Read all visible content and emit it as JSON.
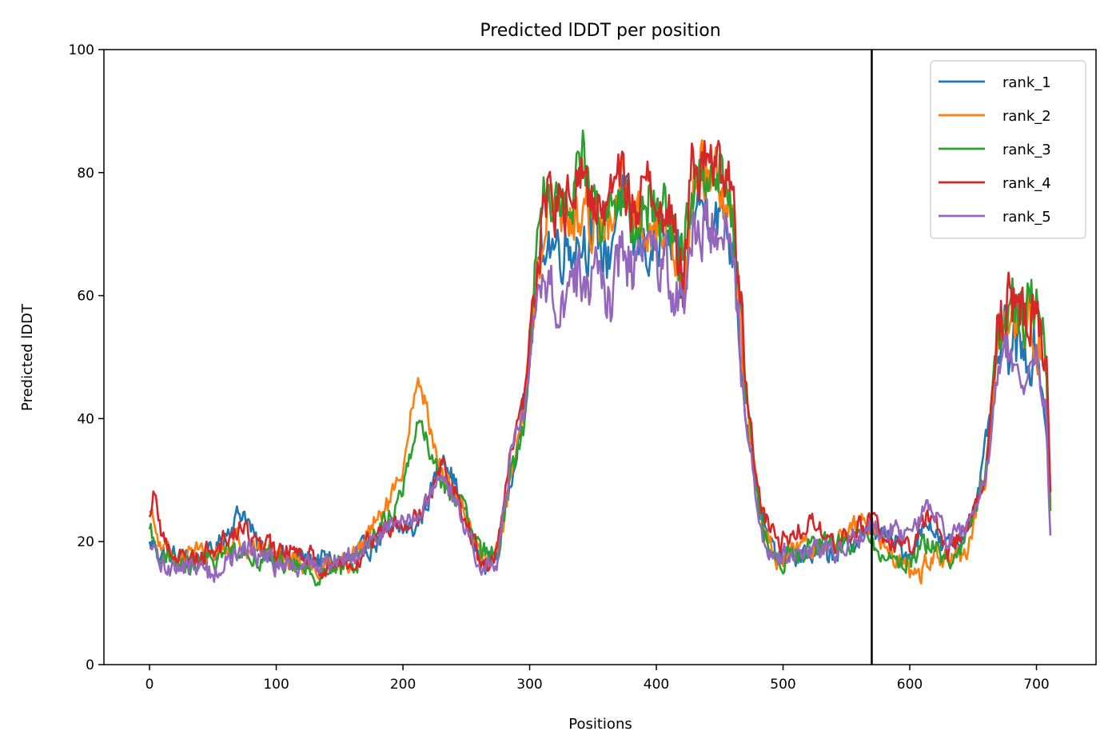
{
  "chart_data": {
    "type": "line",
    "title": "Predicted lDDT per position",
    "xlabel": "Positions",
    "ylabel": "Predicted lDDT",
    "xlim": [
      -36,
      747
    ],
    "ylim": [
      0,
      100
    ],
    "xticks": [
      0,
      100,
      200,
      300,
      400,
      500,
      600,
      700
    ],
    "yticks": [
      0,
      20,
      40,
      60,
      80,
      100
    ],
    "grid": false,
    "legend": "upper-right",
    "vline": 570,
    "n_positions": 712,
    "series": [
      {
        "name": "rank_1",
        "color": "#1f77b4",
        "anchors": [
          [
            0,
            20
          ],
          [
            10,
            18
          ],
          [
            30,
            17
          ],
          [
            50,
            18
          ],
          [
            68,
            24
          ],
          [
            75,
            25
          ],
          [
            85,
            19
          ],
          [
            100,
            18
          ],
          [
            130,
            17
          ],
          [
            160,
            17
          ],
          [
            185,
            21
          ],
          [
            200,
            22
          ],
          [
            210,
            22
          ],
          [
            222,
            28
          ],
          [
            232,
            35
          ],
          [
            245,
            27
          ],
          [
            262,
            16
          ],
          [
            275,
            18
          ],
          [
            285,
            30
          ],
          [
            295,
            42
          ],
          [
            305,
            60
          ],
          [
            312,
            70
          ],
          [
            320,
            68
          ],
          [
            335,
            69
          ],
          [
            350,
            70
          ],
          [
            362,
            66
          ],
          [
            372,
            78
          ],
          [
            382,
            68
          ],
          [
            395,
            68
          ],
          [
            410,
            68
          ],
          [
            422,
            60
          ],
          [
            428,
            74
          ],
          [
            440,
            75
          ],
          [
            455,
            72
          ],
          [
            462,
            66
          ],
          [
            470,
            42
          ],
          [
            478,
            30
          ],
          [
            485,
            22
          ],
          [
            495,
            17
          ],
          [
            515,
            18
          ],
          [
            540,
            18
          ],
          [
            570,
            22
          ],
          [
            585,
            20
          ],
          [
            600,
            18
          ],
          [
            615,
            24
          ],
          [
            625,
            19
          ],
          [
            640,
            20
          ],
          [
            655,
            28
          ],
          [
            668,
            48
          ],
          [
            675,
            52
          ],
          [
            690,
            50
          ],
          [
            700,
            52
          ],
          [
            708,
            38
          ],
          [
            711,
            25
          ]
        ]
      },
      {
        "name": "rank_2",
        "color": "#ff7f0e",
        "anchors": [
          [
            0,
            25
          ],
          [
            10,
            18
          ],
          [
            30,
            18
          ],
          [
            50,
            18
          ],
          [
            70,
            20
          ],
          [
            80,
            19
          ],
          [
            100,
            18
          ],
          [
            130,
            16
          ],
          [
            160,
            17
          ],
          [
            185,
            25
          ],
          [
            200,
            30
          ],
          [
            207,
            42
          ],
          [
            214,
            46
          ],
          [
            220,
            40
          ],
          [
            232,
            30
          ],
          [
            245,
            27
          ],
          [
            262,
            17
          ],
          [
            275,
            18
          ],
          [
            285,
            30
          ],
          [
            295,
            40
          ],
          [
            305,
            62
          ],
          [
            312,
            75
          ],
          [
            320,
            73
          ],
          [
            335,
            72
          ],
          [
            350,
            74
          ],
          [
            365,
            70
          ],
          [
            372,
            78
          ],
          [
            382,
            72
          ],
          [
            395,
            72
          ],
          [
            410,
            70
          ],
          [
            422,
            64
          ],
          [
            428,
            78
          ],
          [
            440,
            80
          ],
          [
            455,
            76
          ],
          [
            462,
            68
          ],
          [
            470,
            45
          ],
          [
            478,
            30
          ],
          [
            485,
            22
          ],
          [
            495,
            17
          ],
          [
            515,
            19
          ],
          [
            540,
            20
          ],
          [
            565,
            24
          ],
          [
            580,
            20
          ],
          [
            595,
            16
          ],
          [
            607,
            14
          ],
          [
            615,
            18
          ],
          [
            630,
            17
          ],
          [
            645,
            18
          ],
          [
            660,
            30
          ],
          [
            670,
            52
          ],
          [
            678,
            57
          ],
          [
            690,
            56
          ],
          [
            700,
            55
          ],
          [
            708,
            45
          ],
          [
            711,
            25
          ]
        ]
      },
      {
        "name": "rank_3",
        "color": "#2ca02c",
        "anchors": [
          [
            0,
            22
          ],
          [
            10,
            17
          ],
          [
            30,
            16
          ],
          [
            50,
            17
          ],
          [
            70,
            19
          ],
          [
            80,
            18
          ],
          [
            100,
            17
          ],
          [
            130,
            15
          ],
          [
            160,
            16
          ],
          [
            185,
            23
          ],
          [
            200,
            28
          ],
          [
            207,
            36
          ],
          [
            214,
            40
          ],
          [
            220,
            35
          ],
          [
            232,
            29
          ],
          [
            245,
            26
          ],
          [
            262,
            18
          ],
          [
            275,
            19
          ],
          [
            285,
            30
          ],
          [
            295,
            38
          ],
          [
            305,
            64
          ],
          [
            312,
            78
          ],
          [
            320,
            74
          ],
          [
            335,
            78
          ],
          [
            342,
            82
          ],
          [
            350,
            74
          ],
          [
            365,
            74
          ],
          [
            372,
            76
          ],
          [
            382,
            70
          ],
          [
            395,
            76
          ],
          [
            410,
            72
          ],
          [
            422,
            66
          ],
          [
            428,
            78
          ],
          [
            440,
            82
          ],
          [
            452,
            80
          ],
          [
            462,
            70
          ],
          [
            470,
            45
          ],
          [
            478,
            30
          ],
          [
            485,
            21
          ],
          [
            495,
            17
          ],
          [
            515,
            18
          ],
          [
            540,
            20
          ],
          [
            570,
            20
          ],
          [
            585,
            17
          ],
          [
            600,
            17
          ],
          [
            615,
            20
          ],
          [
            630,
            17
          ],
          [
            645,
            20
          ],
          [
            660,
            32
          ],
          [
            670,
            55
          ],
          [
            678,
            60
          ],
          [
            690,
            58
          ],
          [
            700,
            60
          ],
          [
            708,
            48
          ],
          [
            711,
            25
          ]
        ]
      },
      {
        "name": "rank_4",
        "color": "#d62728",
        "anchors": [
          [
            0,
            24
          ],
          [
            4,
            29
          ],
          [
            10,
            20
          ],
          [
            30,
            17
          ],
          [
            50,
            19
          ],
          [
            70,
            22
          ],
          [
            80,
            21
          ],
          [
            100,
            18
          ],
          [
            120,
            19
          ],
          [
            135,
            16
          ],
          [
            160,
            17
          ],
          [
            185,
            22
          ],
          [
            200,
            24
          ],
          [
            214,
            25
          ],
          [
            225,
            30
          ],
          [
            232,
            33
          ],
          [
            245,
            26
          ],
          [
            262,
            16
          ],
          [
            275,
            18
          ],
          [
            285,
            35
          ],
          [
            295,
            42
          ],
          [
            305,
            62
          ],
          [
            312,
            77
          ],
          [
            320,
            74
          ],
          [
            335,
            76
          ],
          [
            342,
            80
          ],
          [
            350,
            75
          ],
          [
            365,
            76
          ],
          [
            372,
            80
          ],
          [
            382,
            74
          ],
          [
            395,
            78
          ],
          [
            410,
            74
          ],
          [
            422,
            62
          ],
          [
            428,
            82
          ],
          [
            440,
            82
          ],
          [
            455,
            80
          ],
          [
            462,
            72
          ],
          [
            470,
            48
          ],
          [
            478,
            32
          ],
          [
            485,
            24
          ],
          [
            495,
            20
          ],
          [
            510,
            21
          ],
          [
            520,
            24
          ],
          [
            535,
            20
          ],
          [
            550,
            20
          ],
          [
            570,
            24
          ],
          [
            585,
            20
          ],
          [
            600,
            19
          ],
          [
            615,
            24
          ],
          [
            630,
            19
          ],
          [
            645,
            22
          ],
          [
            660,
            32
          ],
          [
            670,
            55
          ],
          [
            678,
            60
          ],
          [
            690,
            58
          ],
          [
            700,
            58
          ],
          [
            708,
            50
          ],
          [
            711,
            28
          ]
        ]
      },
      {
        "name": "rank_5",
        "color": "#9467bd",
        "anchors": [
          [
            0,
            19
          ],
          [
            10,
            16
          ],
          [
            30,
            16
          ],
          [
            50,
            15
          ],
          [
            70,
            18
          ],
          [
            80,
            19
          ],
          [
            100,
            16
          ],
          [
            130,
            16
          ],
          [
            160,
            18
          ],
          [
            185,
            22
          ],
          [
            200,
            23
          ],
          [
            214,
            25
          ],
          [
            225,
            28
          ],
          [
            232,
            30
          ],
          [
            245,
            25
          ],
          [
            262,
            15
          ],
          [
            275,
            17
          ],
          [
            285,
            34
          ],
          [
            295,
            40
          ],
          [
            305,
            56
          ],
          [
            312,
            64
          ],
          [
            320,
            60
          ],
          [
            335,
            62
          ],
          [
            350,
            64
          ],
          [
            365,
            60
          ],
          [
            372,
            68
          ],
          [
            382,
            64
          ],
          [
            395,
            66
          ],
          [
            410,
            64
          ],
          [
            422,
            56
          ],
          [
            428,
            70
          ],
          [
            440,
            72
          ],
          [
            455,
            70
          ],
          [
            462,
            64
          ],
          [
            470,
            42
          ],
          [
            478,
            28
          ],
          [
            485,
            20
          ],
          [
            495,
            18
          ],
          [
            515,
            18
          ],
          [
            540,
            19
          ],
          [
            570,
            22
          ],
          [
            585,
            22
          ],
          [
            600,
            21
          ],
          [
            615,
            26
          ],
          [
            630,
            20
          ],
          [
            645,
            22
          ],
          [
            660,
            30
          ],
          [
            670,
            48
          ],
          [
            678,
            52
          ],
          [
            690,
            46
          ],
          [
            700,
            50
          ],
          [
            708,
            40
          ],
          [
            711,
            21
          ]
        ]
      }
    ]
  }
}
